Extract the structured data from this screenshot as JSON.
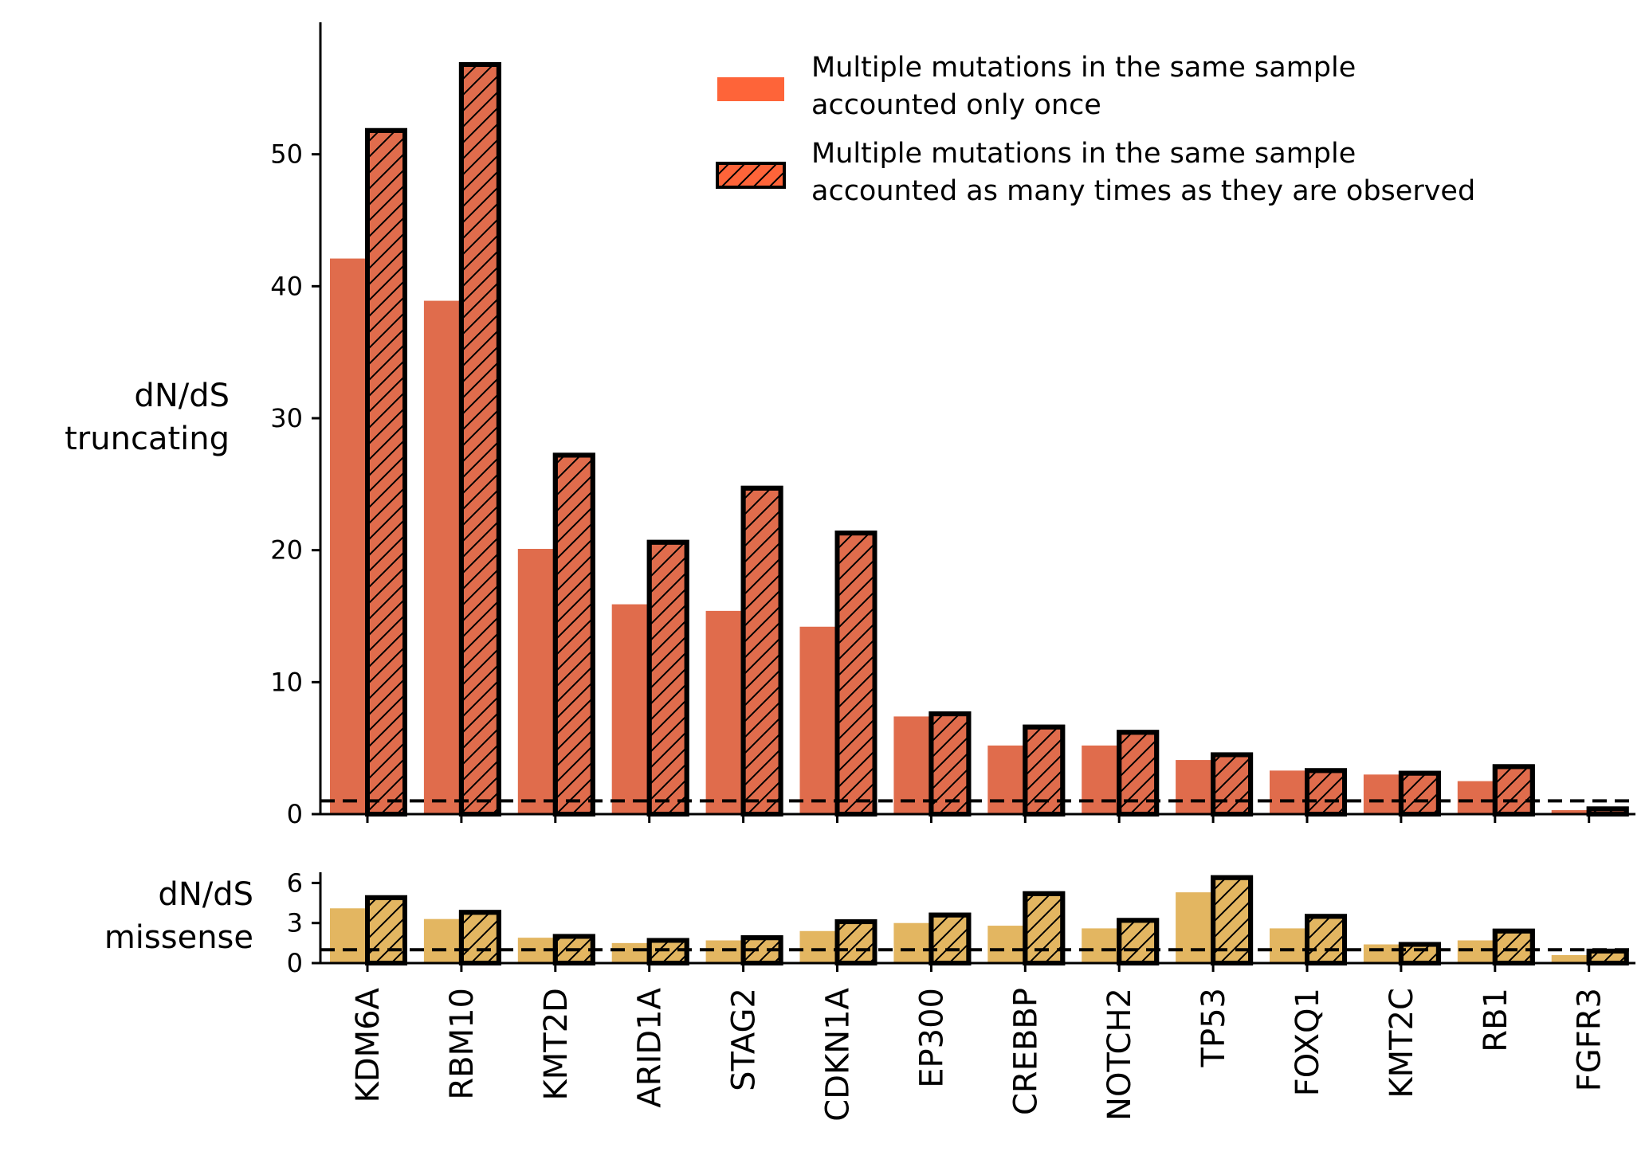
{
  "chart_data": [
    {
      "type": "bar",
      "panel": "truncating",
      "ylabel_lines": [
        "dN/dS",
        "truncating"
      ],
      "ylim": [
        0,
        60
      ],
      "yticks": [
        0,
        10,
        20,
        30,
        40,
        50
      ],
      "reference_line": 1,
      "categories": [
        "KDM6A",
        "RBM10",
        "KMT2D",
        "ARID1A",
        "STAG2",
        "CDKN1A",
        "EP300",
        "CREBBP",
        "NOTCH2",
        "TP53",
        "FOXQ1",
        "KMT2C",
        "RB1",
        "FGFR3"
      ],
      "series": [
        {
          "values": [
            42.1,
            38.9,
            20.1,
            15.9,
            15.4,
            14.2,
            7.4,
            5.2,
            5.2,
            4.1,
            3.3,
            3.0,
            2.5,
            0.3
          ]
        },
        {
          "values": [
            51.8,
            56.8,
            27.2,
            20.6,
            24.7,
            21.3,
            7.6,
            6.6,
            6.2,
            4.5,
            3.3,
            3.1,
            3.6,
            0.4
          ]
        }
      ],
      "colors": [
        "#e06c4c",
        "#e06c4c"
      ]
    },
    {
      "type": "bar",
      "panel": "missense",
      "ylabel_lines": [
        "dN/dS",
        "missense"
      ],
      "ylim": [
        0,
        6.8
      ],
      "yticks": [
        0,
        3,
        6
      ],
      "reference_line": 1,
      "categories": [
        "KDM6A",
        "RBM10",
        "KMT2D",
        "ARID1A",
        "STAG2",
        "CDKN1A",
        "EP300",
        "CREBBP",
        "NOTCH2",
        "TP53",
        "FOXQ1",
        "KMT2C",
        "RB1",
        "FGFR3"
      ],
      "series": [
        {
          "values": [
            4.1,
            3.3,
            1.9,
            1.5,
            1.7,
            2.4,
            3.0,
            2.8,
            2.6,
            5.3,
            2.6,
            1.4,
            1.7,
            0.6
          ]
        },
        {
          "values": [
            4.9,
            3.8,
            2.0,
            1.7,
            1.9,
            3.1,
            3.6,
            5.2,
            3.2,
            6.4,
            3.5,
            1.4,
            2.4,
            0.9
          ]
        }
      ],
      "colors": [
        "#e3b661",
        "#e3b661"
      ]
    }
  ],
  "legend": {
    "placement": "top-right",
    "entries": [
      {
        "lines": [
          "Multiple mutations in the same sample",
          "accounted only once"
        ],
        "color": "#fe6439",
        "style": "solid"
      },
      {
        "lines": [
          "Multiple mutations in the same sample",
          "accounted as many times as they are observed"
        ],
        "color": "#fe6439",
        "style": "hatched"
      }
    ]
  }
}
